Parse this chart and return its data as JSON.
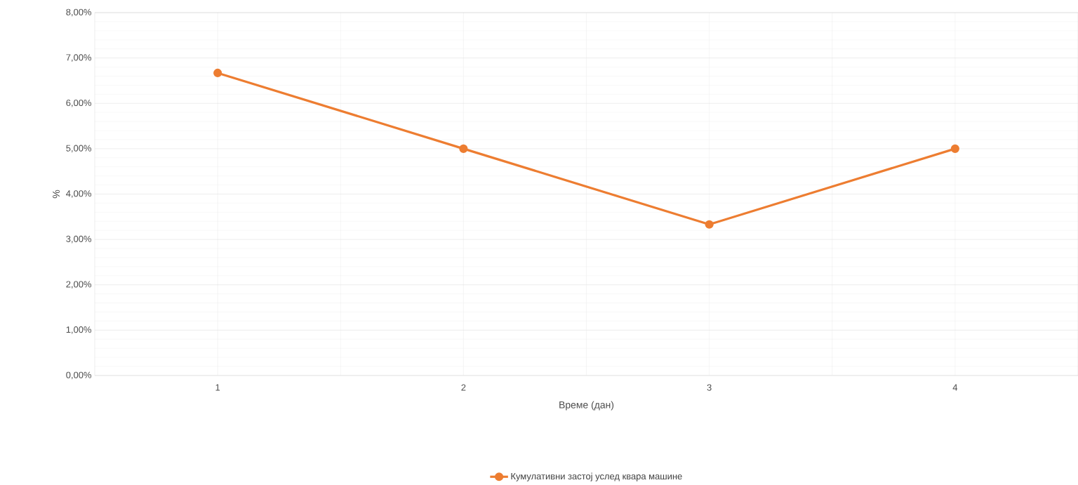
{
  "chart_data": {
    "type": "line",
    "xlabel": "Време (дан)",
    "ylabel": "%",
    "categories": [
      "1",
      "2",
      "3",
      "4"
    ],
    "series": [
      {
        "name": "Кумулативни застој услед квара машине",
        "color": "#ed7d31",
        "values": [
          6.67,
          5.0,
          3.33,
          5.0
        ]
      }
    ],
    "ylim": [
      0,
      8
    ],
    "yticks": [
      {
        "value": 0,
        "label": "0,00%"
      },
      {
        "value": 1,
        "label": "1,00%"
      },
      {
        "value": 2,
        "label": "2,00%"
      },
      {
        "value": 3,
        "label": "3,00%"
      },
      {
        "value": 4,
        "label": "4,00%"
      },
      {
        "value": 5,
        "label": "5,00%"
      },
      {
        "value": 6,
        "label": "6,00%"
      },
      {
        "value": 7,
        "label": "7,00%"
      },
      {
        "value": 8,
        "label": "8,00%"
      }
    ],
    "grid": true,
    "legend": "bottom",
    "marker": "circle",
    "line_style": "solid"
  }
}
